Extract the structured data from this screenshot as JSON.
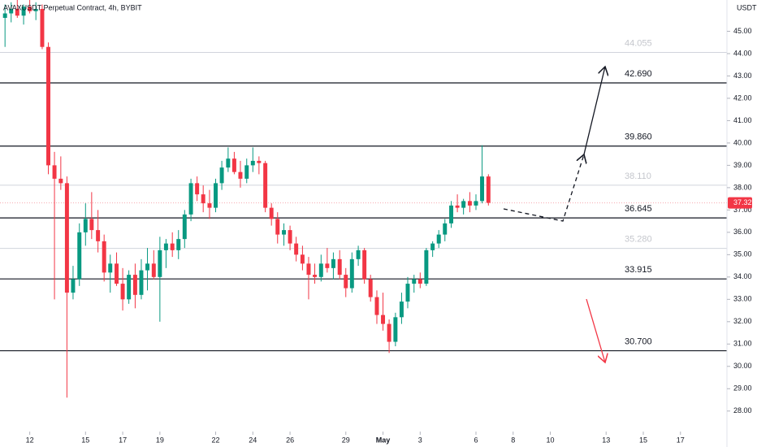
{
  "chart_data": {
    "type": "candlestick",
    "title": "AVAXUSDT Perpetual Contract, 4h, BYBIT",
    "y_axis_label": "USDT",
    "up_color": "#089981",
    "down_color": "#f23645",
    "x": [
      -1.33,
      -1,
      -0.67,
      -0.33,
      0,
      0.33,
      0.67,
      1,
      1.33,
      1.67,
      2,
      2.33,
      2.67,
      3,
      3.33,
      3.67,
      4,
      4.33,
      4.67,
      5,
      5.33,
      5.67,
      6,
      6.33,
      6.67,
      7,
      7.33,
      7.67,
      8,
      8.33,
      8.67,
      9,
      9.33,
      9.67,
      10,
      10.33,
      10.67,
      11,
      11.33,
      11.67,
      12,
      12.33,
      12.67,
      13,
      13.33,
      13.67,
      14,
      14.33,
      14.67,
      15,
      15.33,
      15.67,
      16,
      16.33,
      16.67,
      17,
      17.33,
      17.67,
      18,
      18.33,
      18.67,
      19,
      19.33,
      19.67,
      20,
      20.33,
      20.67,
      21,
      21.33,
      21.67,
      22,
      22.33,
      22.67,
      23,
      23.33,
      23.67,
      24,
      24.33,
      24.67
    ],
    "ohlc": [
      [
        45.6,
        46.2,
        44.3,
        45.8
      ],
      [
        45.8,
        46.3,
        45.4,
        46.0
      ],
      [
        46.0,
        46.4,
        45.6,
        45.7
      ],
      [
        45.7,
        46.2,
        45.3,
        46.1
      ],
      [
        46.1,
        46.4,
        45.8,
        45.9
      ],
      [
        45.9,
        46.3,
        45.5,
        46.0
      ],
      [
        46.0,
        46.2,
        44.2,
        44.3
      ],
      [
        44.3,
        44.5,
        38.6,
        39.0
      ],
      [
        39.0,
        39.6,
        33.0,
        38.4
      ],
      [
        38.4,
        39.4,
        37.9,
        38.2
      ],
      [
        38.2,
        38.5,
        28.6,
        33.3
      ],
      [
        33.3,
        34.5,
        33.0,
        33.9
      ],
      [
        33.9,
        36.4,
        33.6,
        36.0
      ],
      [
        36.0,
        37.3,
        35.4,
        36.6
      ],
      [
        36.6,
        37.8,
        35.7,
        36.1
      ],
      [
        36.1,
        37.0,
        35.1,
        35.6
      ],
      [
        35.6,
        35.9,
        33.8,
        34.2
      ],
      [
        34.2,
        35.0,
        33.3,
        34.6
      ],
      [
        34.6,
        35.1,
        33.6,
        33.7
      ],
      [
        33.7,
        34.4,
        32.5,
        33.0
      ],
      [
        33.0,
        34.3,
        32.8,
        34.1
      ],
      [
        34.1,
        34.6,
        32.6,
        33.2
      ],
      [
        33.2,
        34.8,
        33.0,
        34.3
      ],
      [
        34.3,
        35.3,
        33.4,
        34.6
      ],
      [
        34.6,
        35.2,
        33.9,
        34.0
      ],
      [
        34.0,
        35.8,
        32.0,
        35.2
      ],
      [
        35.2,
        35.7,
        34.4,
        35.5
      ],
      [
        35.5,
        36.0,
        34.9,
        35.2
      ],
      [
        35.2,
        36.1,
        34.8,
        35.7
      ],
      [
        35.7,
        37.0,
        35.3,
        36.8
      ],
      [
        36.8,
        38.4,
        36.5,
        38.2
      ],
      [
        38.2,
        38.5,
        37.4,
        37.7
      ],
      [
        37.7,
        38.1,
        36.9,
        37.3
      ],
      [
        37.3,
        37.9,
        36.6,
        37.1
      ],
      [
        37.1,
        38.4,
        36.9,
        38.2
      ],
      [
        38.2,
        39.2,
        37.9,
        38.9
      ],
      [
        38.9,
        39.8,
        38.7,
        39.3
      ],
      [
        39.3,
        39.6,
        38.6,
        38.7
      ],
      [
        38.7,
        39.2,
        38.0,
        38.4
      ],
      [
        38.4,
        39.3,
        38.2,
        39.0
      ],
      [
        39.0,
        39.8,
        38.7,
        39.2
      ],
      [
        39.2,
        39.4,
        38.6,
        39.1
      ],
      [
        39.1,
        39.2,
        36.9,
        37.1
      ],
      [
        37.1,
        37.3,
        36.3,
        36.6
      ],
      [
        36.6,
        36.9,
        35.5,
        35.9
      ],
      [
        35.9,
        36.4,
        35.4,
        36.1
      ],
      [
        36.1,
        36.3,
        35.2,
        35.5
      ],
      [
        35.5,
        35.8,
        34.7,
        35.0
      ],
      [
        35.0,
        35.4,
        34.3,
        34.6
      ],
      [
        34.6,
        34.9,
        33.0,
        34.1
      ],
      [
        34.1,
        34.6,
        33.7,
        34.0
      ],
      [
        34.0,
        35.0,
        33.8,
        34.6
      ],
      [
        34.6,
        35.3,
        34.2,
        34.4
      ],
      [
        34.4,
        35.1,
        33.9,
        34.8
      ],
      [
        34.8,
        35.2,
        33.9,
        34.1
      ],
      [
        34.1,
        34.4,
        33.1,
        33.5
      ],
      [
        33.5,
        35.1,
        33.3,
        34.8
      ],
      [
        34.8,
        35.4,
        34.5,
        35.2
      ],
      [
        35.2,
        35.3,
        33.7,
        33.9
      ],
      [
        33.9,
        34.1,
        32.9,
        33.1
      ],
      [
        33.1,
        33.4,
        31.9,
        32.3
      ],
      [
        32.3,
        33.3,
        31.6,
        31.9
      ],
      [
        31.9,
        32.1,
        30.6,
        31.1
      ],
      [
        31.1,
        32.4,
        30.9,
        32.2
      ],
      [
        32.2,
        33.3,
        31.9,
        32.9
      ],
      [
        32.9,
        34.0,
        32.6,
        33.7
      ],
      [
        33.7,
        34.1,
        33.3,
        33.9
      ],
      [
        33.9,
        34.2,
        33.5,
        33.7
      ],
      [
        33.7,
        35.3,
        33.6,
        35.2
      ],
      [
        35.2,
        35.6,
        34.9,
        35.5
      ],
      [
        35.5,
        36.1,
        35.3,
        35.9
      ],
      [
        35.9,
        36.6,
        35.6,
        36.4
      ],
      [
        36.4,
        37.4,
        36.2,
        37.2
      ],
      [
        37.2,
        37.7,
        36.9,
        37.1
      ],
      [
        37.1,
        37.5,
        36.8,
        37.4
      ],
      [
        37.4,
        37.8,
        36.9,
        37.2
      ],
      [
        37.2,
        37.7,
        37.0,
        37.4
      ],
      [
        37.4,
        39.9,
        37.3,
        38.5
      ],
      [
        38.5,
        38.6,
        37.2,
        37.32
      ]
    ],
    "xlim": [
      -1.6,
      37.5
    ],
    "ylim": [
      27.3,
      46.4
    ],
    "xticks": [
      {
        "value": 0,
        "label": "12"
      },
      {
        "value": 3,
        "label": "15"
      },
      {
        "value": 5,
        "label": "17"
      },
      {
        "value": 7,
        "label": "19"
      },
      {
        "value": 10,
        "label": "22"
      },
      {
        "value": 12,
        "label": "24"
      },
      {
        "value": 14,
        "label": "26"
      },
      {
        "value": 17,
        "label": "29"
      },
      {
        "value": 19,
        "label": "May"
      },
      {
        "value": 21,
        "label": "3"
      },
      {
        "value": 24,
        "label": "6"
      },
      {
        "value": 26,
        "label": "8"
      },
      {
        "value": 28,
        "label": "10"
      },
      {
        "value": 31,
        "label": "13"
      },
      {
        "value": 33,
        "label": "15"
      },
      {
        "value": 35,
        "label": "17"
      }
    ],
    "yticks": [
      {
        "value": 28,
        "label": "28.00"
      },
      {
        "value": 29,
        "label": "29.00"
      },
      {
        "value": 30,
        "label": "30.00"
      },
      {
        "value": 31,
        "label": "31.00"
      },
      {
        "value": 32,
        "label": "32.00"
      },
      {
        "value": 33,
        "label": "33.00"
      },
      {
        "value": 34,
        "label": "34.00"
      },
      {
        "value": 35,
        "label": "35.00"
      },
      {
        "value": 36,
        "label": "36.00"
      },
      {
        "value": 37,
        "label": "37.00"
      },
      {
        "value": 38,
        "label": "38.00"
      },
      {
        "value": 39,
        "label": "39.00"
      },
      {
        "value": 40,
        "label": "40.00"
      },
      {
        "value": 41,
        "label": "41.00"
      },
      {
        "value": 42,
        "label": "42.00"
      },
      {
        "value": 43,
        "label": "43.00"
      },
      {
        "value": 44,
        "label": "44.00"
      },
      {
        "value": 45,
        "label": "45.00"
      }
    ],
    "levels": [
      44.055,
      {
        "value": 42.69,
        "label": "42.690"
      },
      {
        "value": 39.86,
        "label": "39.860"
      },
      {
        "value": 38.11,
        "label": "38.110"
      },
      36.645,
      {
        "value": 35.28,
        "label": "35.280"
      },
      33.915,
      {
        "value": 30.7,
        "label": "30.700"
      }
    ],
    "level_colors": [
      "#c4c6cc",
      "#131722",
      "#131722",
      "#c4c6cc",
      "#131722",
      "#c4c6cc",
      "#131722",
      "#131722"
    ],
    "last_price": 37.32
  }
}
